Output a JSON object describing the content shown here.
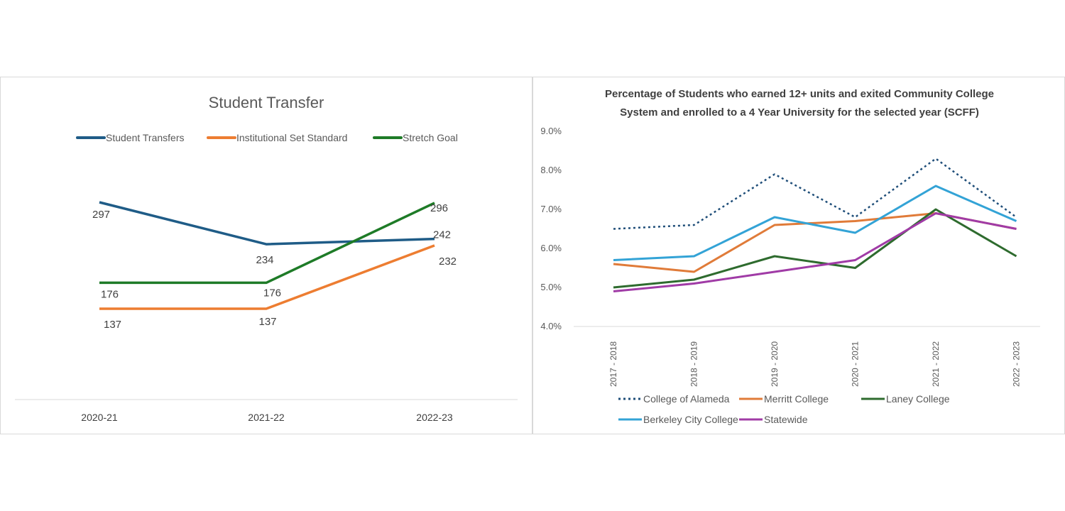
{
  "chart_data": [
    {
      "type": "line",
      "title": "Student Transfer",
      "categories": [
        "2020-21",
        "2021-22",
        "2022-23"
      ],
      "legend_position": "top",
      "grid": false,
      "series": [
        {
          "name": "Student Transfers",
          "color": "#1f5c87",
          "values": [
            297,
            234,
            242
          ],
          "labels": [
            "297",
            "234",
            "242"
          ]
        },
        {
          "name": "Institutional Set Standard",
          "color": "#ed7d31",
          "values": [
            137,
            137,
            232
          ],
          "labels": [
            "137",
            "137",
            "232"
          ]
        },
        {
          "name": "Stretch Goal",
          "color": "#1e7b27",
          "values": [
            176,
            176,
            296
          ],
          "labels": [
            "176",
            "176",
            "296"
          ]
        }
      ]
    },
    {
      "type": "line",
      "title": "Percentage of Students who earned 12+ units and exited Community College System and enrolled to a 4 Year University for the selected year (SCFF)",
      "title_lines": [
        "Percentage of Students who earned 12+ units and exited Community College",
        "System and enrolled to a 4 Year University for the selected year (SCFF)"
      ],
      "categories": [
        "2017 - 2018",
        "2018 - 2019",
        "2019 - 2020",
        "2020 - 2021",
        "2021 - 2022",
        "2022 - 2023"
      ],
      "ylim": [
        4.0,
        9.0
      ],
      "yticks": [
        "4.0%",
        "5.0%",
        "6.0%",
        "7.0%",
        "8.0%",
        "9.0%"
      ],
      "legend_position": "bottom",
      "grid": false,
      "series": [
        {
          "name": "College of Alameda",
          "color": "#1f4e79",
          "dashed": true,
          "values": [
            6.5,
            6.6,
            7.9,
            6.8,
            8.3,
            6.8
          ]
        },
        {
          "name": "Merritt College",
          "color": "#e07b39",
          "values": [
            5.6,
            5.4,
            6.6,
            6.7,
            6.9,
            6.5
          ]
        },
        {
          "name": "Laney College",
          "color": "#2e6b2e",
          "values": [
            5.0,
            5.2,
            5.8,
            5.5,
            7.0,
            5.8
          ]
        },
        {
          "name": "Berkeley City College",
          "color": "#33a3d6",
          "values": [
            5.7,
            5.8,
            6.8,
            6.4,
            7.6,
            6.7
          ]
        },
        {
          "name": "Statewide",
          "color": "#a03ba6",
          "values": [
            4.9,
            5.1,
            5.4,
            5.7,
            6.9,
            6.5
          ]
        }
      ]
    }
  ]
}
